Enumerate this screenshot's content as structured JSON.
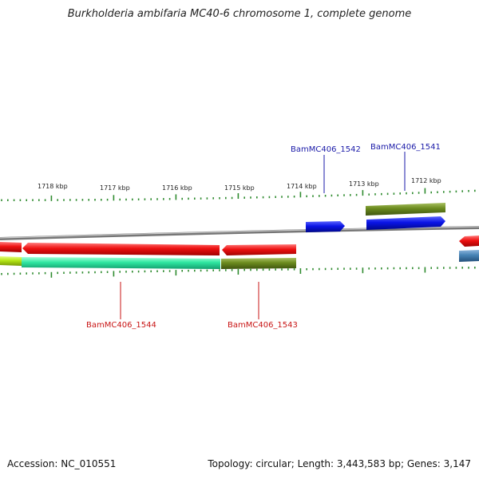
{
  "title": "Burkholderia ambifaria MC40-6 chromosome 1, complete genome",
  "footer": {
    "accession": "Accession: NC_010551",
    "summary": "Topology: circular; Length: 3,443,583 bp; Genes: 3,147"
  },
  "colors": {
    "backbone": "#8a8a8a",
    "tick": "#2e8b2e",
    "forward_label": "#1a1aa8",
    "reverse_label": "#c81414",
    "red_gene": "#ee1111",
    "blue_gene": "#0a14e6",
    "olive_gene": "#6b8a1e",
    "green_gene": "#2ee6a0",
    "steel_gene": "#4682b4",
    "yellow_gene": "#b4e614"
  },
  "scale_labels": [
    "1718 kbp",
    "1717 kbp",
    "1716 kbp",
    "1715 kbp",
    "1714 kbp",
    "1713 kbp",
    "1712 kbp"
  ],
  "gene_labels": [
    {
      "name": "BamMC406_1542",
      "strand": "forward"
    },
    {
      "name": "BamMC406_1541",
      "strand": "forward"
    },
    {
      "name": "BamMC406_1544",
      "strand": "reverse"
    },
    {
      "name": "BamMC406_1543",
      "strand": "reverse"
    }
  ]
}
